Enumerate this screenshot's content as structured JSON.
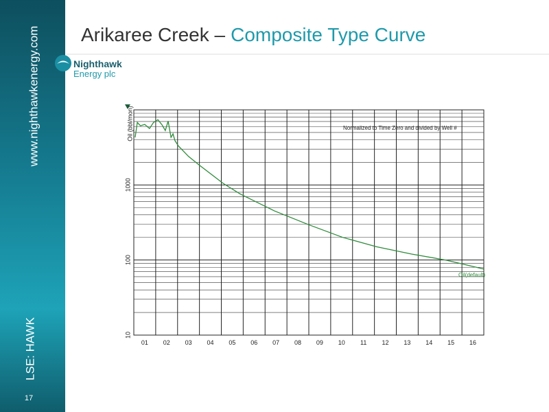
{
  "slide": {
    "title_main": "Arikaree Creek –",
    "title_accent": "Composite Type Curve",
    "website": "www.nighthawkenergy.com",
    "ticker": "LSE: HAWK",
    "page_number": "17",
    "logo": {
      "line1": "Nighthawk",
      "line2": "Energy plc"
    }
  },
  "chart_data": {
    "type": "line",
    "y_label": "Oil (bbl/mon)",
    "annotation": "Normalized to Time Zero and divided by Well #",
    "categories": [
      "01",
      "02",
      "03",
      "04",
      "05",
      "06",
      "07",
      "08",
      "09",
      "10",
      "11",
      "12",
      "13",
      "14",
      "15",
      "16"
    ],
    "xlim": [
      0,
      16
    ],
    "ylim": [
      10,
      10000
    ],
    "ylog": true,
    "grid": true,
    "yticks": [
      10,
      100,
      1000
    ],
    "yminor": [
      20,
      30,
      40,
      50,
      60,
      70,
      80,
      90,
      200,
      300,
      400,
      500,
      600,
      700,
      800,
      900,
      2000,
      3000,
      4000,
      5000,
      6000,
      7000,
      8000,
      9000
    ],
    "series": [
      {
        "name": "Oil(default)",
        "color": "#2e8b3a",
        "x": [
          0.06,
          0.16,
          0.3,
          0.5,
          0.72,
          0.9,
          1.1,
          1.29,
          1.44,
          1.57,
          1.7,
          1.79,
          1.88,
          2.04,
          2.5,
          2.98,
          4.08,
          4.86,
          6.43,
          8.0,
          9.56,
          11.1,
          12.7,
          14.26,
          15.99
        ],
        "values": [
          4300,
          6800,
          6150,
          6400,
          5650,
          6800,
          7400,
          6300,
          5300,
          7100,
          4300,
          4800,
          3900,
          3300,
          2400,
          1850,
          1050,
          760,
          450,
          295,
          200,
          150,
          120,
          100,
          76
        ]
      }
    ]
  }
}
